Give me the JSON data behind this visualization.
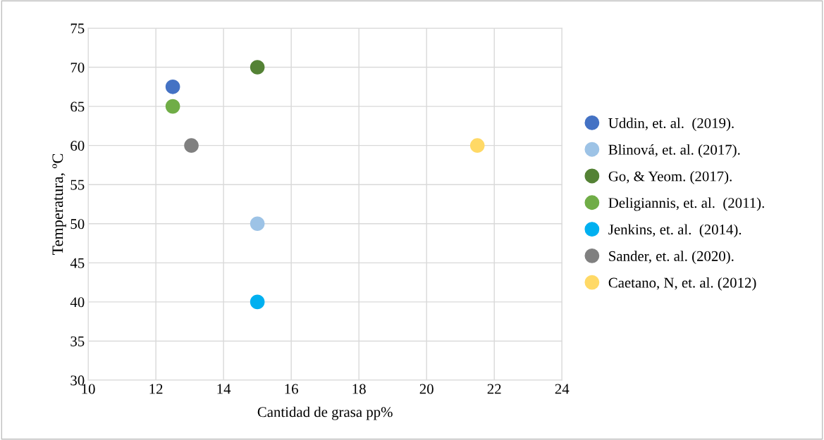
{
  "chart_data": {
    "type": "scatter",
    "xlabel": "Cantidad de grasa pp%",
    "ylabel": "Temperatura, ºC",
    "xlim": [
      10,
      24
    ],
    "xticks": [
      10,
      12,
      14,
      16,
      18,
      20,
      22,
      24
    ],
    "ylim": [
      30,
      75
    ],
    "yticks": [
      30,
      35,
      40,
      45,
      50,
      55,
      60,
      65,
      70,
      75
    ],
    "grid": true,
    "legend": "right",
    "marker": "circle",
    "series": [
      {
        "name": "Uddin, et. al.  (2019).",
        "color": "#4472c4",
        "x": [
          12.5
        ],
        "values": [
          67.5
        ]
      },
      {
        "name": "Blinová, et. al. (2017).",
        "color": "#9dc3e6",
        "x": [
          15
        ],
        "values": [
          50
        ]
      },
      {
        "name": "Go, & Yeom. (2017).",
        "color": "#548235",
        "x": [
          15
        ],
        "values": [
          70
        ]
      },
      {
        "name": "Deligiannis, et. al.  (2011).",
        "color": "#70ad47",
        "x": [
          12.5
        ],
        "values": [
          65
        ]
      },
      {
        "name": "Jenkins, et. al.  (2014).",
        "color": "#00b0f0",
        "x": [
          15
        ],
        "values": [
          40
        ]
      },
      {
        "name": "Sander, et. al. (2020).",
        "color": "#808080",
        "x": [
          13.05
        ],
        "values": [
          60
        ]
      },
      {
        "name": "Caetano, N, et. al. (2012)",
        "color": "#ffd966",
        "x": [
          21.5
        ],
        "values": [
          60
        ]
      }
    ]
  }
}
